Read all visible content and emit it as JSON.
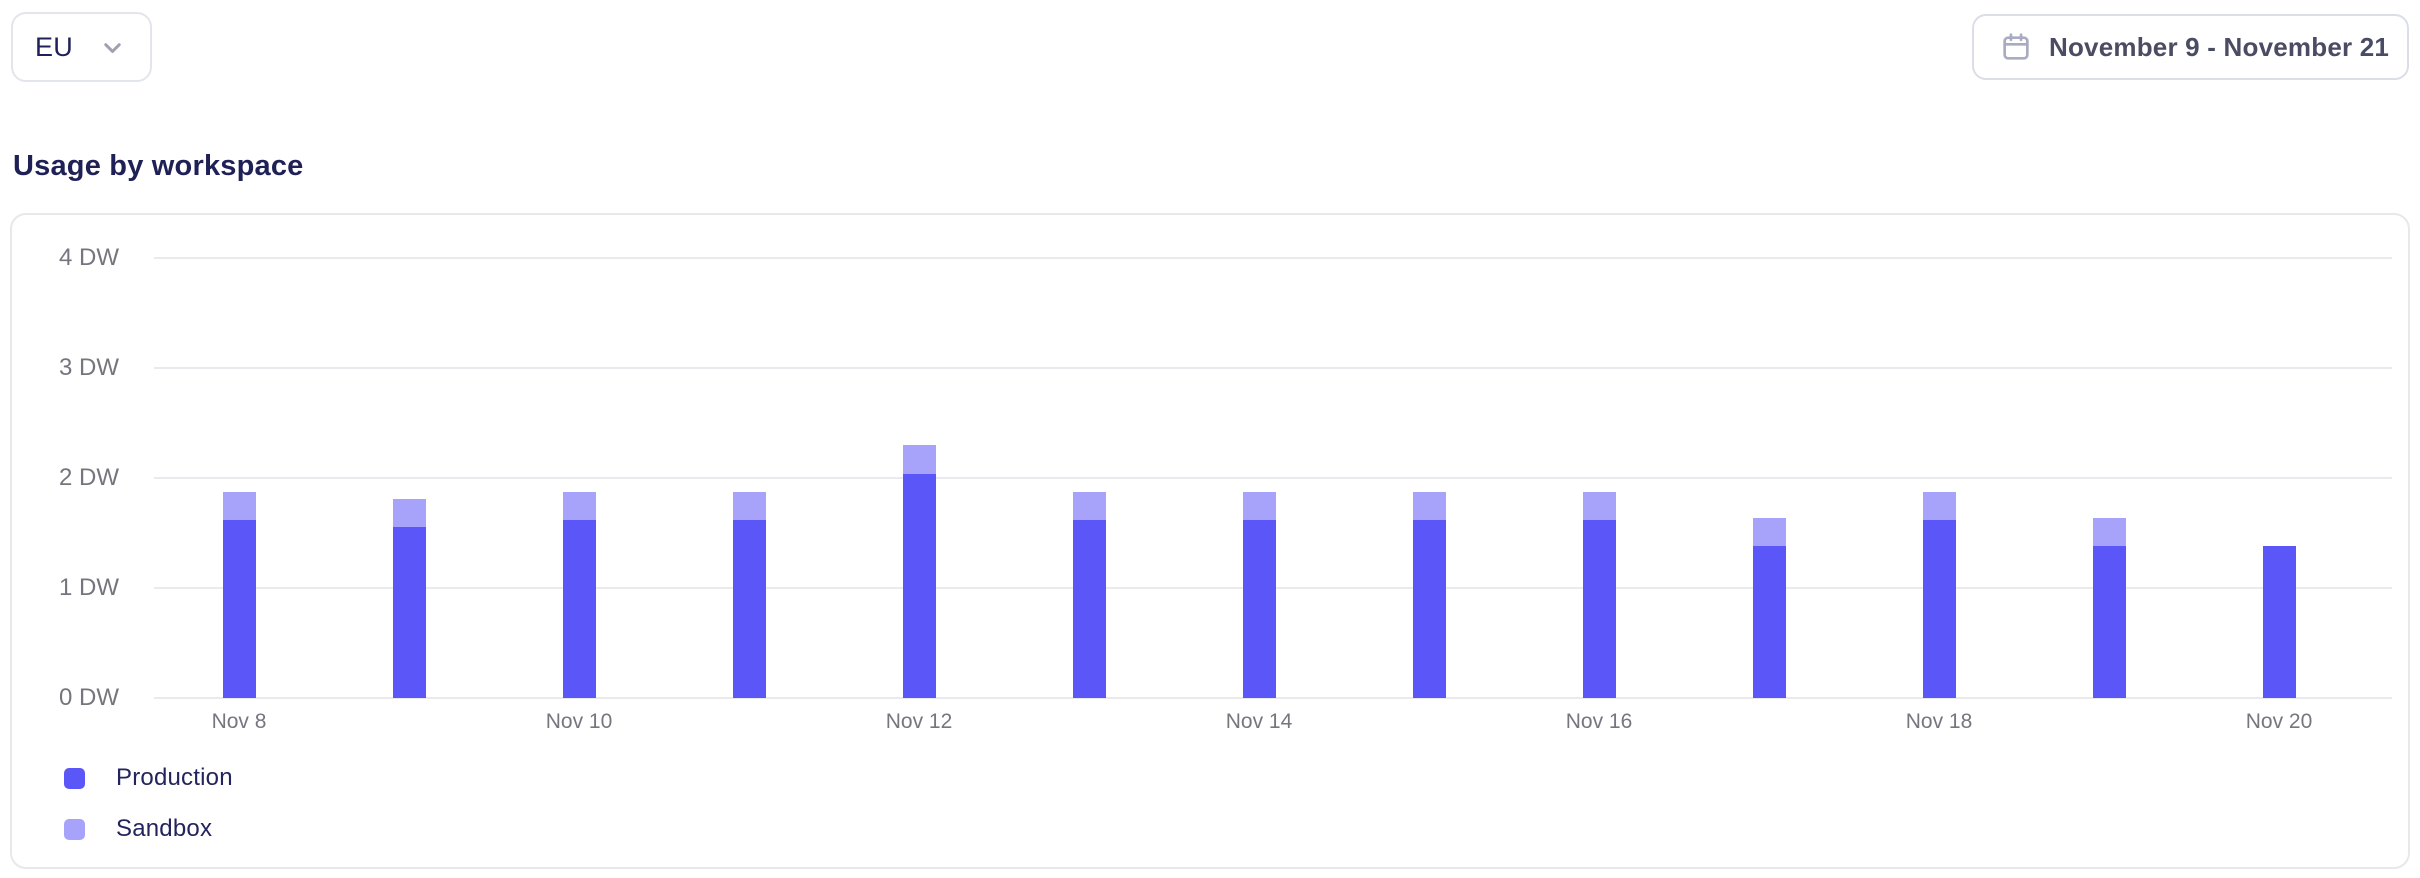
{
  "header": {
    "region_selector": {
      "value": "EU"
    },
    "date_range_picker": {
      "label": "November 9 - November 21"
    }
  },
  "section": {
    "title": "Usage by workspace"
  },
  "colors": {
    "production": "#5B56F8",
    "sandbox": "#A7A3FB",
    "grid_line": "#EAEAEE",
    "axis_text": "#76767F",
    "title_text": "#1F2156",
    "legend_text": "#23245C",
    "card_border": "#E7E8EC",
    "button_border": "#DCDEE7",
    "muted_icon": "#A9ABC2",
    "chevron_icon": "#9DA1B0"
  },
  "chart_data": {
    "type": "bar",
    "stacked": true,
    "title": "Usage by workspace",
    "unit": "DW",
    "x": [
      "Nov 8",
      "Nov 9",
      "Nov 10",
      "Nov 11",
      "Nov 12",
      "Nov 13",
      "Nov 14",
      "Nov 15",
      "Nov 16",
      "Nov 17",
      "Nov 18",
      "Nov 19",
      "Nov 20"
    ],
    "x_tick_labels_shown": [
      "Nov 8",
      "Nov 10",
      "Nov 12",
      "Nov 14",
      "Nov 16",
      "Nov 18",
      "Nov 20"
    ],
    "series": [
      {
        "name": "Production",
        "color": "#5B56F8",
        "values": [
          1.62,
          1.55,
          1.62,
          1.62,
          2.04,
          1.62,
          1.62,
          1.62,
          1.62,
          1.38,
          1.62,
          1.38,
          1.38
        ]
      },
      {
        "name": "Sandbox",
        "color": "#A7A3FB",
        "values": [
          0.25,
          0.25,
          0.25,
          0.25,
          0.26,
          0.25,
          0.25,
          0.25,
          0.25,
          0.25,
          0.25,
          0.25,
          0
        ]
      }
    ],
    "y_ticks": [
      "0 DW",
      "1 DW",
      "2 DW",
      "3 DW",
      "4 DW"
    ],
    "y_tick_values": [
      0,
      1,
      2,
      3,
      4
    ],
    "ylim": [
      0,
      4
    ],
    "grid": "horizontal",
    "legend": [
      "Production",
      "Sandbox"
    ],
    "legend_position": "bottom-left"
  }
}
